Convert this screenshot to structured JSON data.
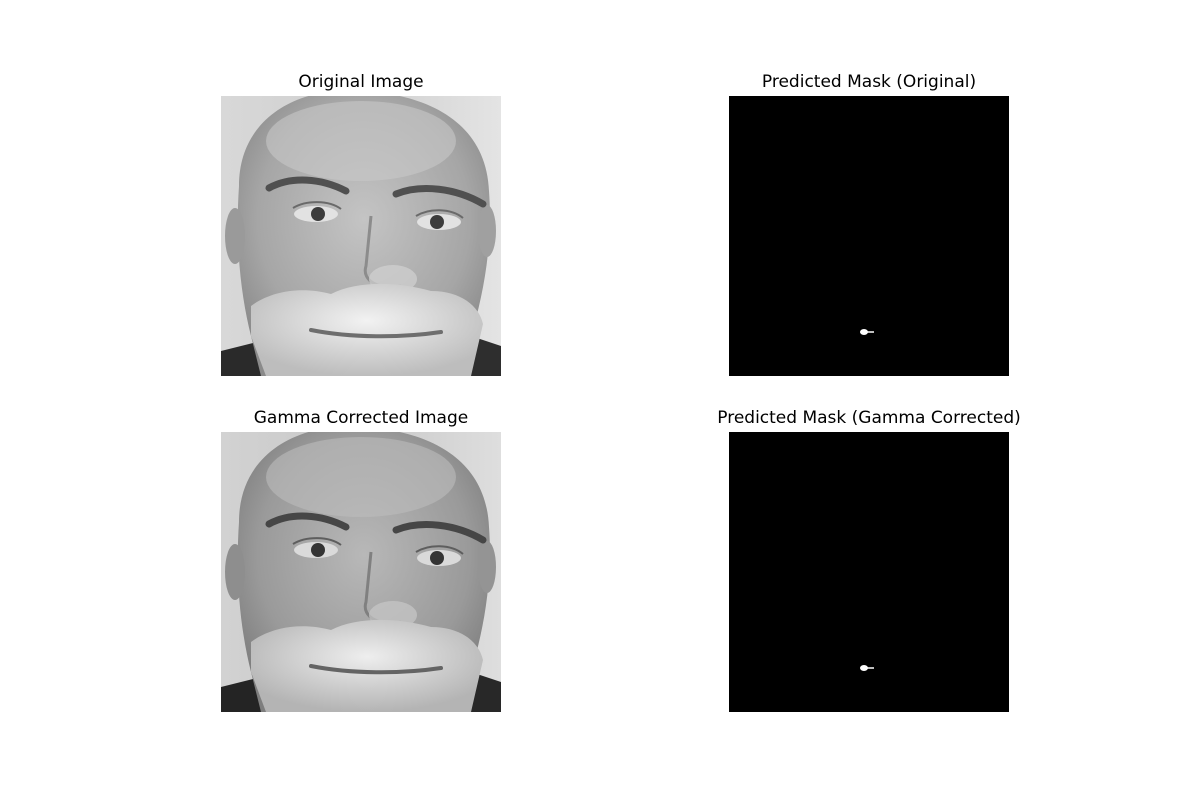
{
  "figure": {
    "panels": [
      {
        "id": "original",
        "title": "Original Image",
        "kind": "grayscale-face-photo"
      },
      {
        "id": "mask-original",
        "title": "Predicted Mask (Original)",
        "kind": "binary-mask"
      },
      {
        "id": "gamma",
        "title": "Gamma Corrected Image",
        "kind": "grayscale-face-photo"
      },
      {
        "id": "mask-gamma",
        "title": "Predicted Mask (Gamma Corrected)",
        "kind": "binary-mask"
      }
    ],
    "colors": {
      "background": "#ffffff",
      "mask_background": "#000000",
      "mask_foreground": "#ffffff"
    }
  }
}
